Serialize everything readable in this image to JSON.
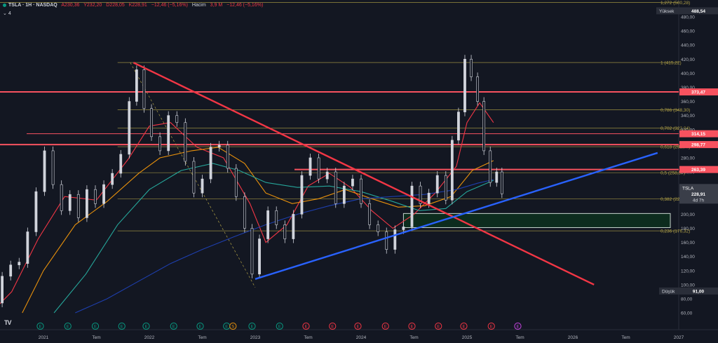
{
  "header": {
    "title": "TSLA · 1H · NASDAQ",
    "open": "A230,36",
    "high": "Y232,20",
    "low": "D228,05",
    "close": "K228,91",
    "change": "−12,46 (−5,16%)",
    "volume_label": "Hacim",
    "volume_value": "3,9 M",
    "volume_change": "−12,46 (−5,16%)",
    "indicators_toggle": "4"
  },
  "colors": {
    "background": "#131722",
    "price_up": "#d1d4dc",
    "downtrend": "#f23645",
    "uptrend": "#2962ff",
    "fib": "#b2a246",
    "resistance": "#f7525f",
    "ma_red": "#f23645",
    "ma_orange": "#e8910c",
    "ma_teal": "#26a69a",
    "ma_navy": "#1e3fae",
    "zone": "#0d2c1e"
  },
  "chart_data": {
    "type": "candlestick",
    "symbol": "TSLA",
    "timeframe": "1H",
    "exchange": "NASDAQ",
    "y_axis": {
      "ticks": [
        60,
        80,
        100,
        120,
        140,
        160,
        180,
        200,
        220,
        240,
        260,
        280,
        300,
        320,
        340,
        360,
        380,
        400,
        420,
        440,
        460,
        480
      ],
      "range": [
        48,
        510
      ]
    },
    "x_axis": {
      "labels": [
        "2021",
        "Tem",
        "2022",
        "Tem",
        "2023",
        "Tem",
        "2024",
        "Tem",
        "2025",
        "Tem",
        "2026",
        "Tem",
        "2027"
      ]
    },
    "price_scale_labels": {
      "high": {
        "label": "Yüksek",
        "value": "488,54"
      },
      "low": {
        "label": "Düşük",
        "value": "91,00"
      },
      "current": {
        "label": "TSLA",
        "value": "228,91",
        "countdown": "4d 7h"
      }
    },
    "fib_levels": [
      {
        "ratio": "1,272",
        "price": 500.28,
        "label": "1,272 (500,28)"
      },
      {
        "ratio": "1",
        "price": 415.22,
        "label": "1 (415,22)"
      },
      {
        "ratio": "0,786",
        "price": 348.3,
        "label": "0,786 (348,30)"
      },
      {
        "ratio": "0,702",
        "price": 322.04,
        "label": "0,702 (322,04)"
      },
      {
        "ratio": "0,618",
        "price": 295.77,
        "label": "0,618 (295,77)"
      },
      {
        "ratio": "0,5",
        "price": 258.87,
        "label": "0,5 (258,87)"
      },
      {
        "ratio": "0,382",
        "price": 221.97,
        "label": "0,382 (221,97)"
      },
      {
        "ratio": "0,236",
        "price": 176.32,
        "label": "0,236 (176,32)"
      }
    ],
    "resistance_levels": [
      {
        "price": 373.47,
        "label": "373,47"
      },
      {
        "price": 314.15,
        "label": "314,15"
      },
      {
        "price": 298.77,
        "label": "298,77"
      },
      {
        "price": 263.39,
        "label": "263,39"
      }
    ],
    "support_zone": {
      "from": 181,
      "to": 201
    },
    "downtrend": {
      "from": {
        "t": 2021.85,
        "price": 415
      },
      "to": {
        "t": 2026.2,
        "price": 100
      }
    },
    "uptrend": {
      "from": {
        "t": 2023.0,
        "price": 108
      },
      "to": {
        "t": 2026.8,
        "price": 287
      }
    },
    "candles": [
      {
        "t": 2020.45,
        "o": 58,
        "c": 84
      },
      {
        "t": 2020.53,
        "o": 84,
        "c": 74
      },
      {
        "t": 2020.61,
        "o": 74,
        "c": 112
      },
      {
        "t": 2020.69,
        "o": 112,
        "c": 128
      },
      {
        "t": 2020.77,
        "o": 128,
        "c": 132
      },
      {
        "t": 2020.85,
        "o": 130,
        "c": 175
      },
      {
        "t": 2020.93,
        "o": 175,
        "c": 232
      },
      {
        "t": 2021.01,
        "o": 232,
        "c": 290
      },
      {
        "t": 2021.09,
        "o": 290,
        "c": 242
      },
      {
        "t": 2021.17,
        "o": 242,
        "c": 205
      },
      {
        "t": 2021.25,
        "o": 205,
        "c": 228
      },
      {
        "t": 2021.33,
        "o": 228,
        "c": 195
      },
      {
        "t": 2021.41,
        "o": 195,
        "c": 235
      },
      {
        "t": 2021.49,
        "o": 235,
        "c": 215
      },
      {
        "t": 2021.57,
        "o": 215,
        "c": 242
      },
      {
        "t": 2021.65,
        "o": 242,
        "c": 258
      },
      {
        "t": 2021.73,
        "o": 258,
        "c": 285
      },
      {
        "t": 2021.81,
        "o": 285,
        "c": 360
      },
      {
        "t": 2021.88,
        "o": 360,
        "c": 405
      },
      {
        "t": 2021.95,
        "o": 405,
        "c": 350
      },
      {
        "t": 2022.02,
        "o": 350,
        "c": 310
      },
      {
        "t": 2022.1,
        "o": 310,
        "c": 290
      },
      {
        "t": 2022.18,
        "o": 290,
        "c": 340
      },
      {
        "t": 2022.26,
        "o": 340,
        "c": 330
      },
      {
        "t": 2022.34,
        "o": 330,
        "c": 275
      },
      {
        "t": 2022.42,
        "o": 275,
        "c": 230
      },
      {
        "t": 2022.5,
        "o": 230,
        "c": 250
      },
      {
        "t": 2022.58,
        "o": 250,
        "c": 295
      },
      {
        "t": 2022.66,
        "o": 295,
        "c": 298
      },
      {
        "t": 2022.74,
        "o": 298,
        "c": 265
      },
      {
        "t": 2022.82,
        "o": 265,
        "c": 225
      },
      {
        "t": 2022.9,
        "o": 225,
        "c": 180
      },
      {
        "t": 2022.97,
        "o": 180,
        "c": 115
      },
      {
        "t": 2023.04,
        "o": 115,
        "c": 165
      },
      {
        "t": 2023.12,
        "o": 165,
        "c": 205
      },
      {
        "t": 2023.2,
        "o": 205,
        "c": 185
      },
      {
        "t": 2023.28,
        "o": 185,
        "c": 165
      },
      {
        "t": 2023.36,
        "o": 165,
        "c": 200
      },
      {
        "t": 2023.44,
        "o": 200,
        "c": 255
      },
      {
        "t": 2023.52,
        "o": 255,
        "c": 280
      },
      {
        "t": 2023.6,
        "o": 280,
        "c": 250
      },
      {
        "t": 2023.68,
        "o": 250,
        "c": 260
      },
      {
        "t": 2023.76,
        "o": 260,
        "c": 215
      },
      {
        "t": 2023.84,
        "o": 215,
        "c": 240
      },
      {
        "t": 2023.92,
        "o": 240,
        "c": 250
      },
      {
        "t": 2024.0,
        "o": 250,
        "c": 215
      },
      {
        "t": 2024.08,
        "o": 215,
        "c": 185
      },
      {
        "t": 2024.16,
        "o": 185,
        "c": 175
      },
      {
        "t": 2024.24,
        "o": 175,
        "c": 150
      },
      {
        "t": 2024.32,
        "o": 150,
        "c": 178
      },
      {
        "t": 2024.4,
        "o": 178,
        "c": 182
      },
      {
        "t": 2024.48,
        "o": 182,
        "c": 240
      },
      {
        "t": 2024.56,
        "o": 240,
        "c": 215
      },
      {
        "t": 2024.64,
        "o": 215,
        "c": 230
      },
      {
        "t": 2024.72,
        "o": 230,
        "c": 255
      },
      {
        "t": 2024.8,
        "o": 255,
        "c": 220
      },
      {
        "t": 2024.86,
        "o": 220,
        "c": 305
      },
      {
        "t": 2024.92,
        "o": 305,
        "c": 345
      },
      {
        "t": 2024.98,
        "o": 345,
        "c": 420
      },
      {
        "t": 2025.04,
        "o": 420,
        "c": 395
      },
      {
        "t": 2025.1,
        "o": 395,
        "c": 360
      },
      {
        "t": 2025.16,
        "o": 360,
        "c": 290
      },
      {
        "t": 2025.22,
        "o": 290,
        "c": 245
      },
      {
        "t": 2025.28,
        "o": 245,
        "c": 260
      },
      {
        "t": 2025.33,
        "o": 260,
        "c": 229
      }
    ],
    "moving_averages": [
      {
        "color": "ma_red",
        "points": [
          [
            2020.45,
            52
          ],
          [
            2020.7,
            90
          ],
          [
            2020.95,
            165
          ],
          [
            2021.2,
            225
          ],
          [
            2021.5,
            220
          ],
          [
            2021.8,
            278
          ],
          [
            2022.0,
            325
          ],
          [
            2022.2,
            330
          ],
          [
            2022.45,
            295
          ],
          [
            2022.7,
            280
          ],
          [
            2022.95,
            215
          ],
          [
            2023.1,
            160
          ],
          [
            2023.3,
            185
          ],
          [
            2023.5,
            240
          ],
          [
            2023.7,
            258
          ],
          [
            2023.9,
            238
          ],
          [
            2024.1,
            205
          ],
          [
            2024.3,
            180
          ],
          [
            2024.5,
            200
          ],
          [
            2024.7,
            230
          ],
          [
            2024.9,
            268
          ],
          [
            2025.0,
            330
          ],
          [
            2025.12,
            358
          ],
          [
            2025.25,
            330
          ]
        ]
      },
      {
        "color": "ma_orange",
        "points": [
          [
            2020.8,
            60
          ],
          [
            2021.0,
            120
          ],
          [
            2021.3,
            185
          ],
          [
            2021.6,
            218
          ],
          [
            2021.9,
            258
          ],
          [
            2022.1,
            280
          ],
          [
            2022.4,
            290
          ],
          [
            2022.65,
            295
          ],
          [
            2022.9,
            272
          ],
          [
            2023.1,
            230
          ],
          [
            2023.35,
            215
          ],
          [
            2023.6,
            222
          ],
          [
            2023.85,
            235
          ],
          [
            2024.1,
            222
          ],
          [
            2024.35,
            210
          ],
          [
            2024.6,
            212
          ],
          [
            2024.85,
            225
          ],
          [
            2025.05,
            262
          ],
          [
            2025.25,
            276
          ]
        ]
      },
      {
        "color": "ma_teal",
        "points": [
          [
            2021.1,
            60
          ],
          [
            2021.4,
            115
          ],
          [
            2021.7,
            185
          ],
          [
            2022.0,
            235
          ],
          [
            2022.3,
            262
          ],
          [
            2022.6,
            272
          ],
          [
            2022.85,
            262
          ],
          [
            2023.1,
            245
          ],
          [
            2023.4,
            238
          ],
          [
            2023.7,
            240
          ],
          [
            2024.0,
            232
          ],
          [
            2024.3,
            218
          ],
          [
            2024.55,
            205
          ],
          [
            2024.8,
            208
          ],
          [
            2025.0,
            232
          ],
          [
            2025.25,
            248
          ]
        ]
      },
      {
        "color": "ma_navy",
        "points": [
          [
            2021.3,
            60
          ],
          [
            2021.6,
            80
          ],
          [
            2021.9,
            105
          ],
          [
            2022.2,
            130
          ],
          [
            2022.5,
            150
          ],
          [
            2022.8,
            168
          ],
          [
            2023.1,
            185
          ],
          [
            2023.4,
            200
          ],
          [
            2023.7,
            212
          ],
          [
            2024.0,
            222
          ],
          [
            2024.3,
            225
          ],
          [
            2024.6,
            228
          ],
          [
            2024.9,
            235
          ],
          [
            2025.1,
            244
          ],
          [
            2025.25,
            249
          ]
        ]
      }
    ],
    "event_markers": [
      {
        "t": 2020.97,
        "type": "E"
      },
      {
        "t": 2021.23,
        "type": "E"
      },
      {
        "t": 2021.49,
        "type": "E"
      },
      {
        "t": 2021.74,
        "type": "E"
      },
      {
        "t": 2021.97,
        "type": "E"
      },
      {
        "t": 2022.23,
        "type": "E"
      },
      {
        "t": 2022.48,
        "type": "E"
      },
      {
        "t": 2022.73,
        "type": "E"
      },
      {
        "t": 2022.79,
        "type": "S"
      },
      {
        "t": 2022.97,
        "type": "E"
      },
      {
        "t": 2023.23,
        "type": "E"
      },
      {
        "t": 2023.48,
        "type": "E"
      },
      {
        "t": 2023.73,
        "type": "E"
      },
      {
        "t": 2023.97,
        "type": "E"
      },
      {
        "t": 2024.23,
        "type": "E"
      },
      {
        "t": 2024.48,
        "type": "E"
      },
      {
        "t": 2024.73,
        "type": "E"
      },
      {
        "t": 2024.97,
        "type": "E"
      },
      {
        "t": 2025.23,
        "type": "E"
      },
      {
        "t": 2025.48,
        "type": "E"
      }
    ]
  }
}
